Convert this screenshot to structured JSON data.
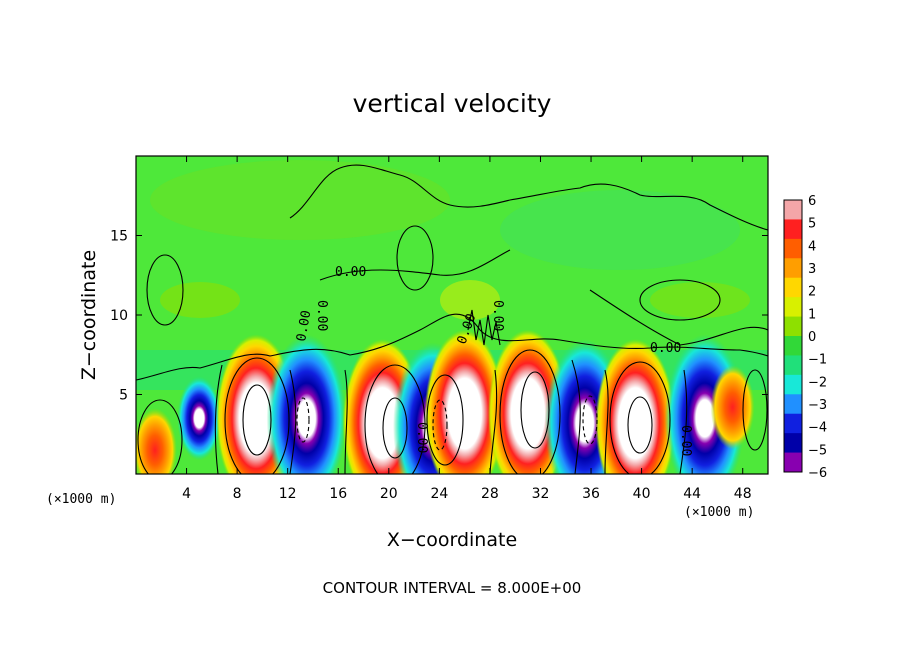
{
  "chart_data": {
    "type": "heatmap",
    "title": "vertical velocity",
    "xlabel": "X−coordinate",
    "ylabel": "Z−coordinate",
    "x_unit": "(×1000 m)",
    "xlim": [
      0,
      50
    ],
    "ylim": [
      0,
      20
    ],
    "x_ticks": [
      4,
      8,
      12,
      16,
      20,
      24,
      28,
      32,
      36,
      40,
      44,
      48
    ],
    "y_ticks": [
      5,
      10,
      15
    ],
    "colorbar": {
      "ticks": [
        "6",
        "5",
        "4",
        "3",
        "2",
        "1",
        "0",
        "−1",
        "−2",
        "−3",
        "−4",
        "−5",
        "−6"
      ],
      "colors": [
        "#f4a6a8",
        "#ff2020",
        "#ff5e00",
        "#ff9e00",
        "#ffd700",
        "#d8f000",
        "#8ee000",
        "#31d838",
        "#20e07a",
        "#18e8d8",
        "#2090ff",
        "#1020e0",
        "#0000a8",
        "#8800b0"
      ]
    },
    "contour_labels": [
      "0.00",
      "0.00",
      "0.00",
      "0.00",
      "0.00",
      "0.00",
      "0.00",
      "0.00"
    ],
    "footer": "CONTOUR INTERVAL = 8.000E+00",
    "cells": [
      {
        "x": 5,
        "z": 3.5,
        "w": -4
      },
      {
        "x": 9.5,
        "z": 3.5,
        "w": 6
      },
      {
        "x": 13.5,
        "z": 3.5,
        "w": -5
      },
      {
        "x": 19.5,
        "z": 3.2,
        "w": 6
      },
      {
        "x": 23.5,
        "z": 3,
        "w": -5
      },
      {
        "x": 26,
        "z": 3.8,
        "w": 5
      },
      {
        "x": 31,
        "z": 3.8,
        "w": 6
      },
      {
        "x": 35.5,
        "z": 3.2,
        "w": -5
      },
      {
        "x": 39.5,
        "z": 3.2,
        "w": 6
      },
      {
        "x": 45,
        "z": 3.5,
        "w": -5
      },
      {
        "x": 47.2,
        "z": 4.2,
        "w": 4
      },
      {
        "x": 1.5,
        "z": 1.5,
        "w": 3
      }
    ]
  }
}
